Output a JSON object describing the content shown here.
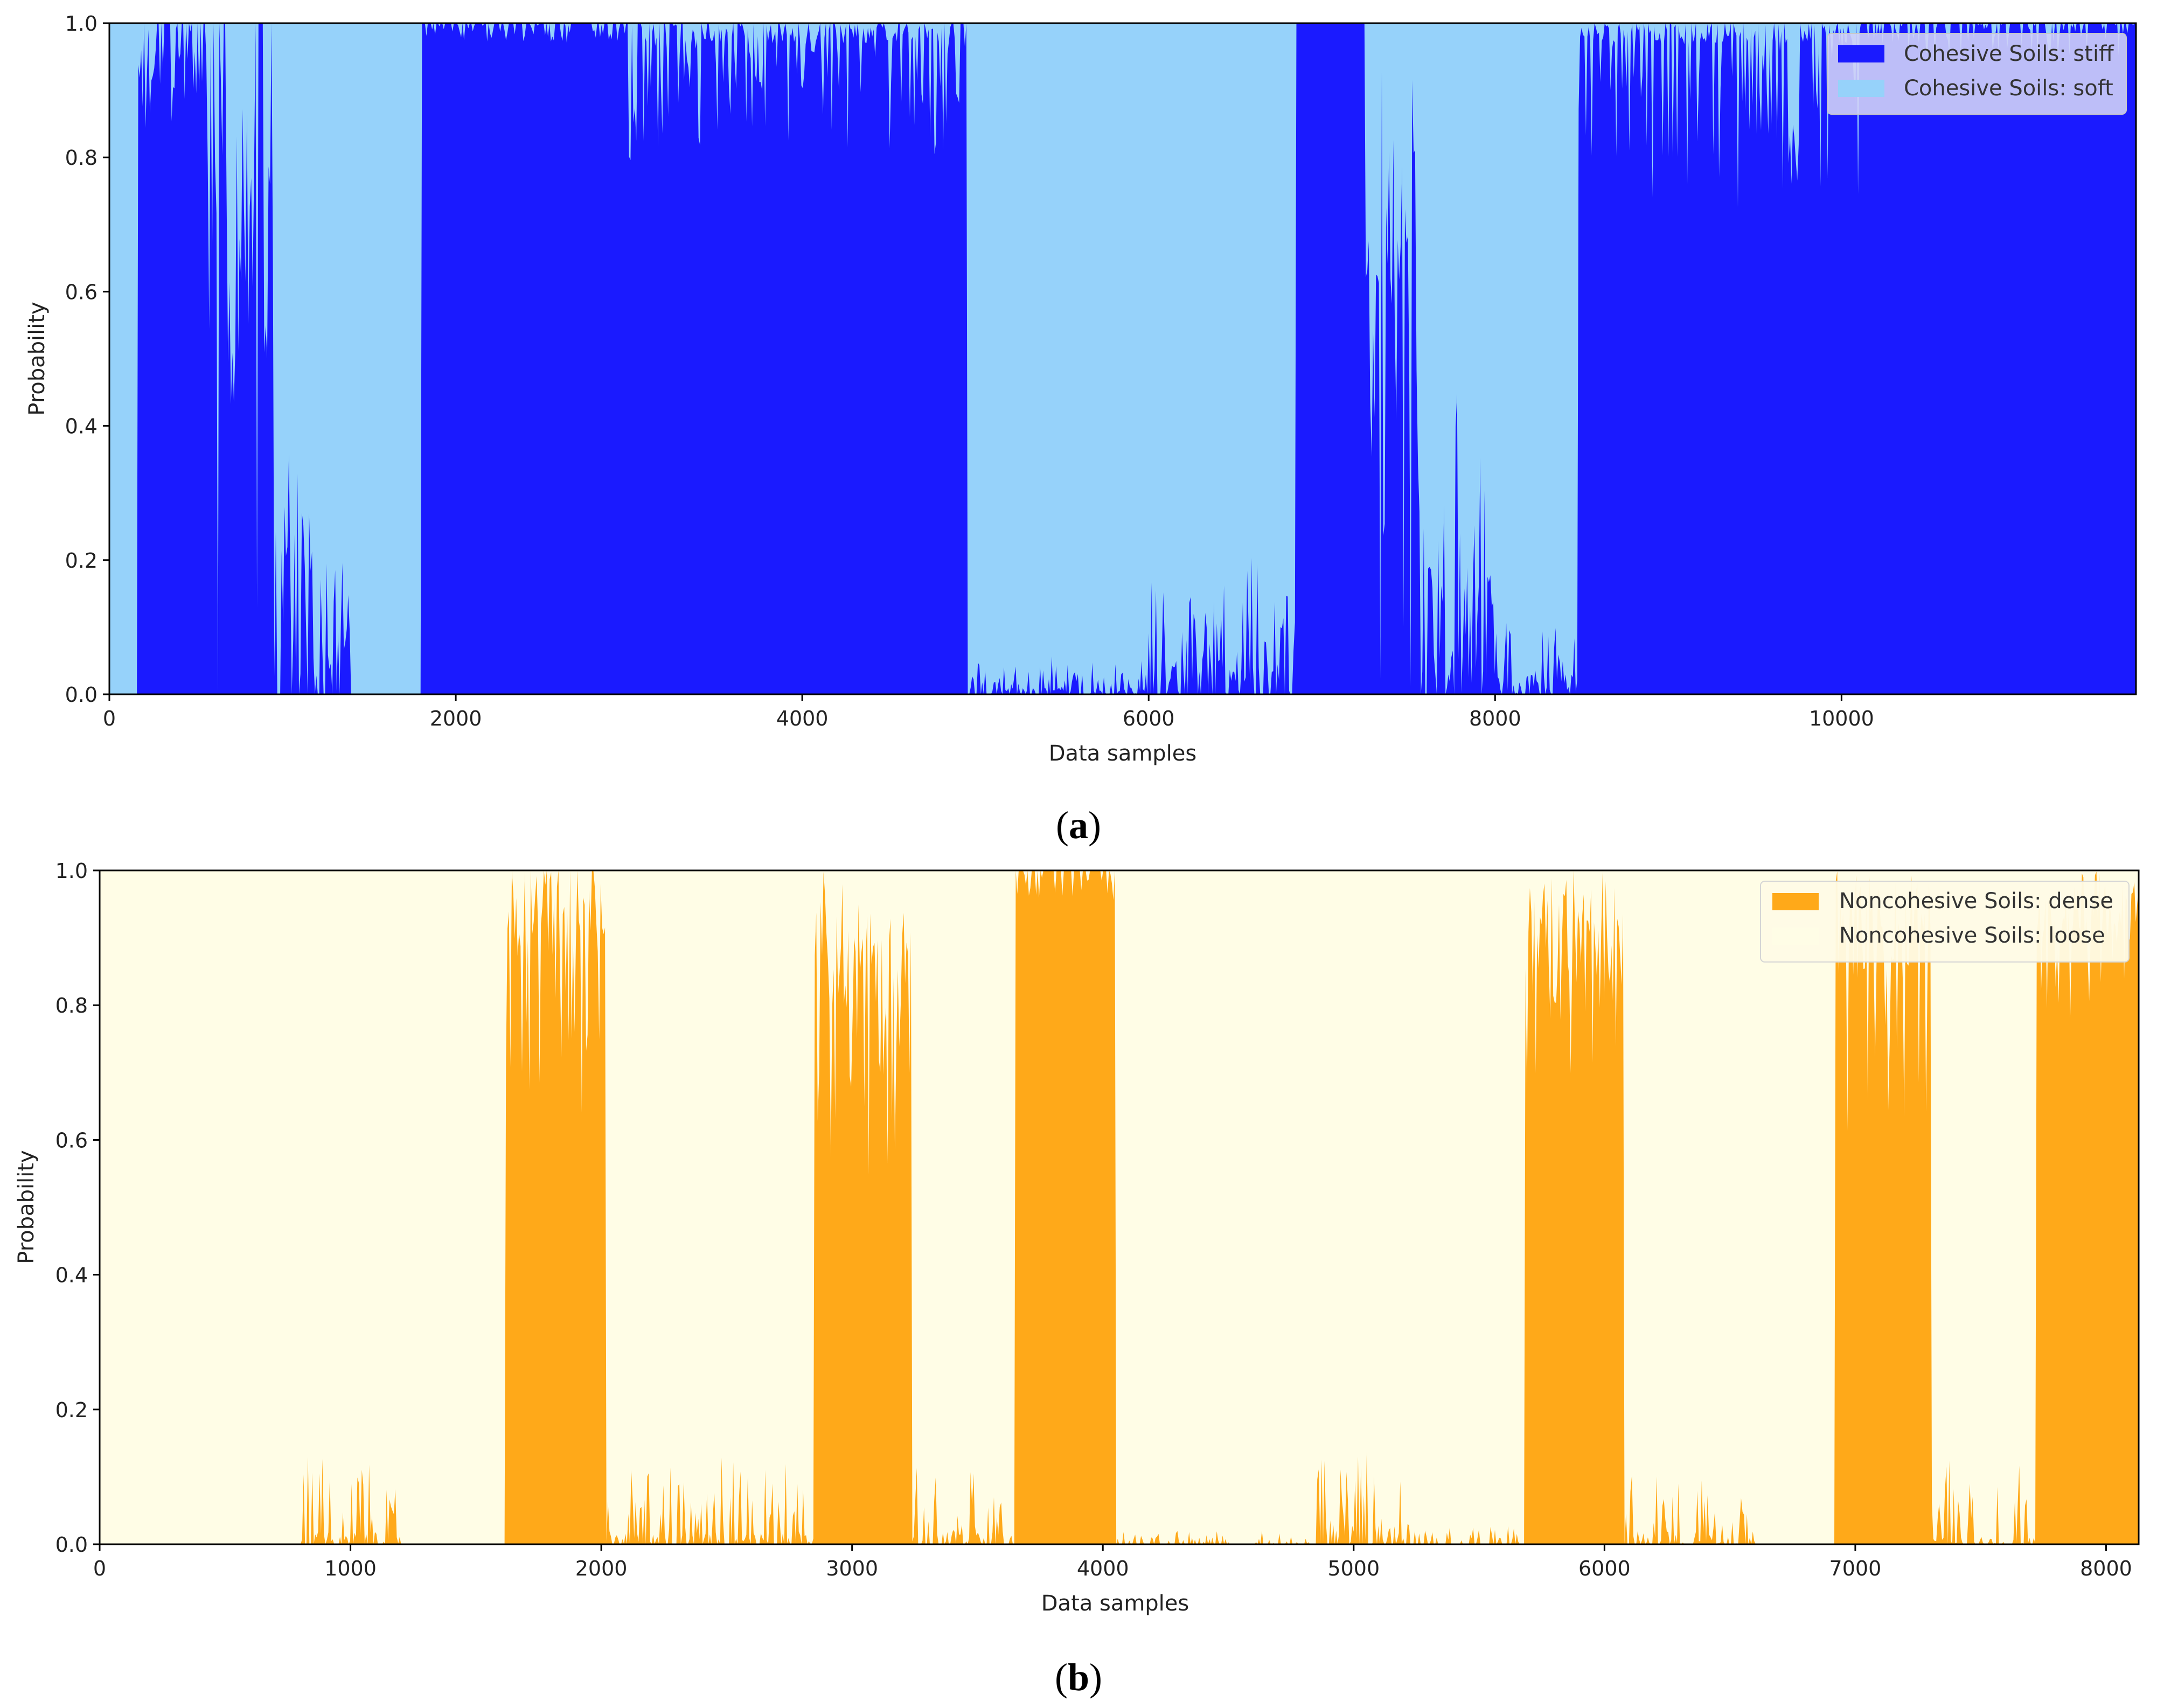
{
  "chart_data": [
    {
      "type": "area",
      "stacked": true,
      "panel_label": "(a)",
      "caption": {
        "open": "(",
        "letter": "a",
        "close": ")"
      },
      "xlabel": "Data samples",
      "ylabel": "Probability",
      "xlim": [
        0,
        11700
      ],
      "ylim": [
        0.0,
        1.0
      ],
      "xticks": [
        0,
        2000,
        4000,
        6000,
        8000,
        10000
      ],
      "yticks": [
        "0.0",
        "0.2",
        "0.4",
        "0.6",
        "0.8",
        "1.0"
      ],
      "legend_position": "top-right",
      "series": [
        {
          "name": "Cohesive Soils: stiff",
          "color": "#1a1aff",
          "role": "bottom"
        },
        {
          "name": "Cohesive Soils: soft",
          "color": "#96d2fa",
          "role": "top"
        }
      ],
      "segments": [
        {
          "start": 0,
          "end": 160,
          "level": 0.0,
          "noise": 0.0,
          "jitter": 0
        },
        {
          "start": 160,
          "end": 560,
          "level": 1.0,
          "noise": 0.12,
          "jitter": 0.1
        },
        {
          "start": 560,
          "end": 950,
          "level": 0.82,
          "noise": 0.35,
          "jitter": 0.55
        },
        {
          "start": 950,
          "end": 1180,
          "level": 0.1,
          "noise": 0.2,
          "jitter": 0.3
        },
        {
          "start": 1180,
          "end": 1390,
          "level": 0.03,
          "noise": 0.12,
          "jitter": 0.2
        },
        {
          "start": 1390,
          "end": 1800,
          "level": 0.0,
          "noise": 0.0,
          "jitter": 0
        },
        {
          "start": 1800,
          "end": 3000,
          "level": 1.0,
          "noise": 0.0,
          "jitter": 0.03
        },
        {
          "start": 3000,
          "end": 4950,
          "level": 0.99,
          "noise": 0.02,
          "jitter": 0.18
        },
        {
          "start": 4950,
          "end": 6000,
          "level": 0.0,
          "noise": 0.01,
          "jitter": 0.05
        },
        {
          "start": 6000,
          "end": 6850,
          "level": 0.02,
          "noise": 0.05,
          "jitter": 0.15
        },
        {
          "start": 6850,
          "end": 7250,
          "level": 1.0,
          "noise": 0.0,
          "jitter": 0
        },
        {
          "start": 7250,
          "end": 7550,
          "level": 0.65,
          "noise": 0.3,
          "jitter": 0.5
        },
        {
          "start": 7550,
          "end": 8000,
          "level": 0.07,
          "noise": 0.12,
          "jitter": 0.3
        },
        {
          "start": 8000,
          "end": 8480,
          "level": 0.01,
          "noise": 0.02,
          "jitter": 0.1
        },
        {
          "start": 8480,
          "end": 10100,
          "level": 0.99,
          "noise": 0.02,
          "jitter": 0.25
        },
        {
          "start": 10100,
          "end": 11700,
          "level": 1.0,
          "noise": 0.0,
          "jitter": 0.05
        }
      ],
      "legend": [
        "Cohesive Soils: stiff",
        "Cohesive Soils: soft"
      ]
    },
    {
      "type": "area",
      "stacked": true,
      "panel_label": "(b)",
      "caption": {
        "open": "(",
        "letter": "b",
        "close": ")"
      },
      "xlabel": "Data samples",
      "ylabel": "Probability",
      "xlim": [
        0,
        8130
      ],
      "ylim": [
        0.0,
        1.0
      ],
      "xticks": [
        0,
        1000,
        2000,
        3000,
        4000,
        5000,
        6000,
        7000,
        8000
      ],
      "yticks": [
        "0.0",
        "0.2",
        "0.4",
        "0.6",
        "0.8",
        "1.0"
      ],
      "legend_position": "top-right",
      "series": [
        {
          "name": "Noncohesive Soils: dense",
          "color": "#ffa919",
          "role": "bottom"
        },
        {
          "name": "Noncohesive Soils: loose",
          "color": "#fffde6",
          "role": "top"
        }
      ],
      "segments": [
        {
          "start": 0,
          "end": 800,
          "level": 0.0,
          "noise": 0.0,
          "jitter": 0
        },
        {
          "start": 800,
          "end": 1200,
          "level": 0.0,
          "noise": 0.02,
          "jitter": 0.12
        },
        {
          "start": 1200,
          "end": 1620,
          "level": 0.0,
          "noise": 0.0,
          "jitter": 0
        },
        {
          "start": 1620,
          "end": 2020,
          "level": 0.95,
          "noise": 0.08,
          "jitter": 0.3
        },
        {
          "start": 2020,
          "end": 2850,
          "level": 0.0,
          "noise": 0.02,
          "jitter": 0.12
        },
        {
          "start": 2850,
          "end": 3240,
          "level": 0.9,
          "noise": 0.1,
          "jitter": 0.3
        },
        {
          "start": 3240,
          "end": 3650,
          "level": 0.0,
          "noise": 0.02,
          "jitter": 0.1
        },
        {
          "start": 3650,
          "end": 4050,
          "level": 1.0,
          "noise": 0.0,
          "jitter": 0.05
        },
        {
          "start": 4050,
          "end": 4850,
          "level": 0.0,
          "noise": 0.0,
          "jitter": 0.02
        },
        {
          "start": 4850,
          "end": 5200,
          "level": 0.0,
          "noise": 0.03,
          "jitter": 0.15
        },
        {
          "start": 5200,
          "end": 5680,
          "level": 0.0,
          "noise": 0.0,
          "jitter": 0.03
        },
        {
          "start": 5680,
          "end": 6080,
          "level": 0.9,
          "noise": 0.1,
          "jitter": 0.3
        },
        {
          "start": 6080,
          "end": 6600,
          "level": 0.0,
          "noise": 0.02,
          "jitter": 0.1
        },
        {
          "start": 6600,
          "end": 6920,
          "level": 0.0,
          "noise": 0.0,
          "jitter": 0
        },
        {
          "start": 6920,
          "end": 7300,
          "level": 0.92,
          "noise": 0.08,
          "jitter": 0.3
        },
        {
          "start": 7300,
          "end": 7720,
          "level": 0.0,
          "noise": 0.01,
          "jitter": 0.12
        },
        {
          "start": 7720,
          "end": 8130,
          "level": 0.95,
          "noise": 0.05,
          "jitter": 0.15
        }
      ],
      "legend": [
        "Noncohesive Soils: dense",
        "Noncohesive Soils: loose"
      ]
    }
  ]
}
